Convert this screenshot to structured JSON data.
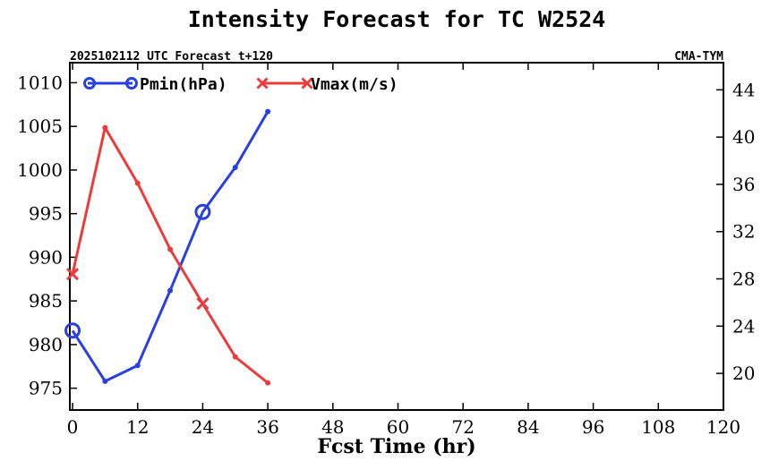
{
  "chart_data": {
    "type": "line",
    "title": "Intensity Forecast for TC W2524",
    "subtitle_left": "2025102112 UTC Forecast t+120",
    "subtitle_right": "CMA-TYM",
    "xlabel": "Fcst Time (hr)",
    "x": [
      0,
      6,
      12,
      18,
      24,
      30,
      36
    ],
    "xlim": [
      -0.5,
      120
    ],
    "xticks": [
      0,
      12,
      24,
      36,
      48,
      60,
      72,
      84,
      96,
      108,
      120
    ],
    "y_left": {
      "lim": [
        972.5,
        1012.3
      ],
      "ticks": [
        975,
        980,
        985,
        990,
        995,
        1000,
        1005,
        1010
      ]
    },
    "y_right": {
      "lim": [
        16.9,
        46.3
      ],
      "ticks": [
        20,
        24,
        28,
        32,
        36,
        40,
        44
      ]
    },
    "series": [
      {
        "name": "Pmin(hPa)",
        "axis": "left",
        "color": "#2a3fe0",
        "values": [
          981.6,
          975.8,
          977.6,
          986.2,
          995.2,
          1000.3,
          1006.7
        ],
        "big_markers_at": [
          0,
          24
        ]
      },
      {
        "name": "Vmax(m/s)",
        "axis": "right",
        "color": "#eb3c3c",
        "values": [
          28.4,
          40.8,
          36.1,
          30.5,
          25.9,
          21.4,
          19.2
        ],
        "big_markers_at": [
          0,
          24
        ]
      }
    ]
  }
}
